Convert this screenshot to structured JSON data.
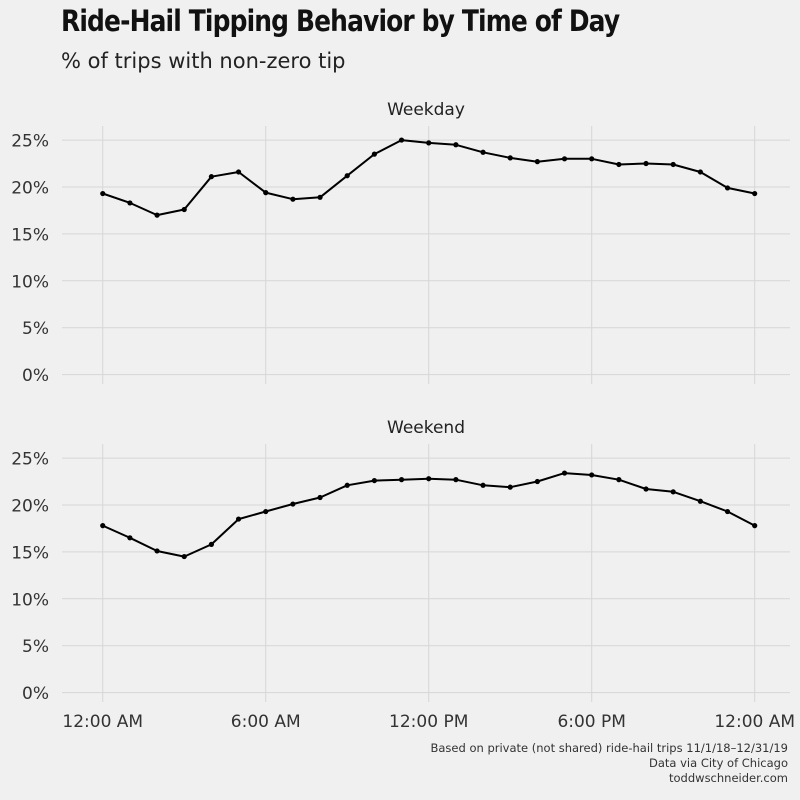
{
  "title": "Ride-Hail Tipping Behavior by Time of Day",
  "subtitle": "% of trips with non-zero tip",
  "caption": [
    "Based on private (not shared) ride-hail trips 11/1/18–12/31/19",
    "Data via City of Chicago",
    "toddwschneider.com"
  ],
  "chart_data": {
    "type": "line",
    "grid": true,
    "y_tick_labels": [
      "0%",
      "5%",
      "10%",
      "15%",
      "20%",
      "25%"
    ],
    "y_ticks": [
      0,
      5,
      10,
      15,
      20,
      25
    ],
    "ylim": [
      -1,
      26.5
    ],
    "x_tick_labels": [
      "12:00 AM",
      "6:00 AM",
      "12:00 PM",
      "6:00 PM",
      "12:00 AM"
    ],
    "x_ticks": [
      0,
      6,
      12,
      18,
      24
    ],
    "xlim": [
      -1.5,
      25.3
    ],
    "x": [
      0,
      1,
      2,
      3,
      4,
      5,
      6,
      7,
      8,
      9,
      10,
      11,
      12,
      13,
      14,
      15,
      16,
      17,
      18,
      19,
      20,
      21,
      22,
      23,
      24
    ],
    "panels": [
      {
        "name": "Weekday",
        "values": [
          19.3,
          18.3,
          17.0,
          17.6,
          21.1,
          21.6,
          19.4,
          18.7,
          18.9,
          21.2,
          23.5,
          25.0,
          24.7,
          24.5,
          23.7,
          23.1,
          22.7,
          23.0,
          23.0,
          22.4,
          22.5,
          22.4,
          21.6,
          19.9,
          19.3
        ]
      },
      {
        "name": "Weekend",
        "values": [
          17.8,
          16.5,
          15.1,
          14.5,
          15.8,
          18.5,
          19.3,
          20.1,
          20.8,
          22.1,
          22.6,
          22.7,
          22.8,
          22.7,
          22.1,
          21.9,
          22.5,
          23.4,
          23.2,
          22.7,
          21.7,
          21.4,
          20.4,
          19.3,
          17.8
        ]
      }
    ]
  }
}
